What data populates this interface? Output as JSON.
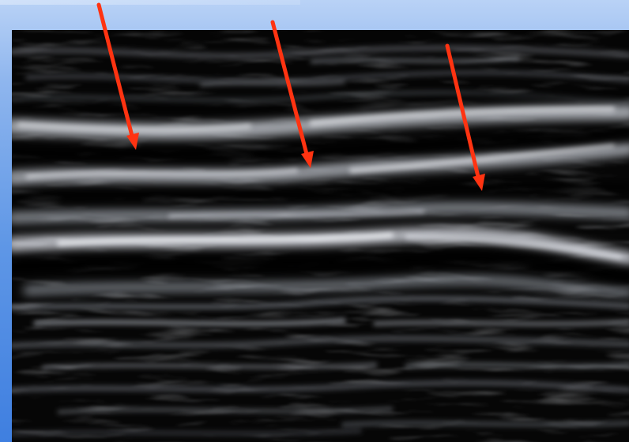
{
  "image": {
    "description_tags": [
      "ultrasound-image",
      "tendon-fibers"
    ],
    "annotations": {
      "arrow_color": "#ff3311",
      "arrow_count": 3
    },
    "colors": {
      "slide_background_top": "#b9d2f6",
      "slide_background_bottom": "#3f7fe0",
      "image_background": "#050505",
      "fiber_light": "#e3e6ee",
      "fiber_mid": "#9aa0aa"
    }
  }
}
